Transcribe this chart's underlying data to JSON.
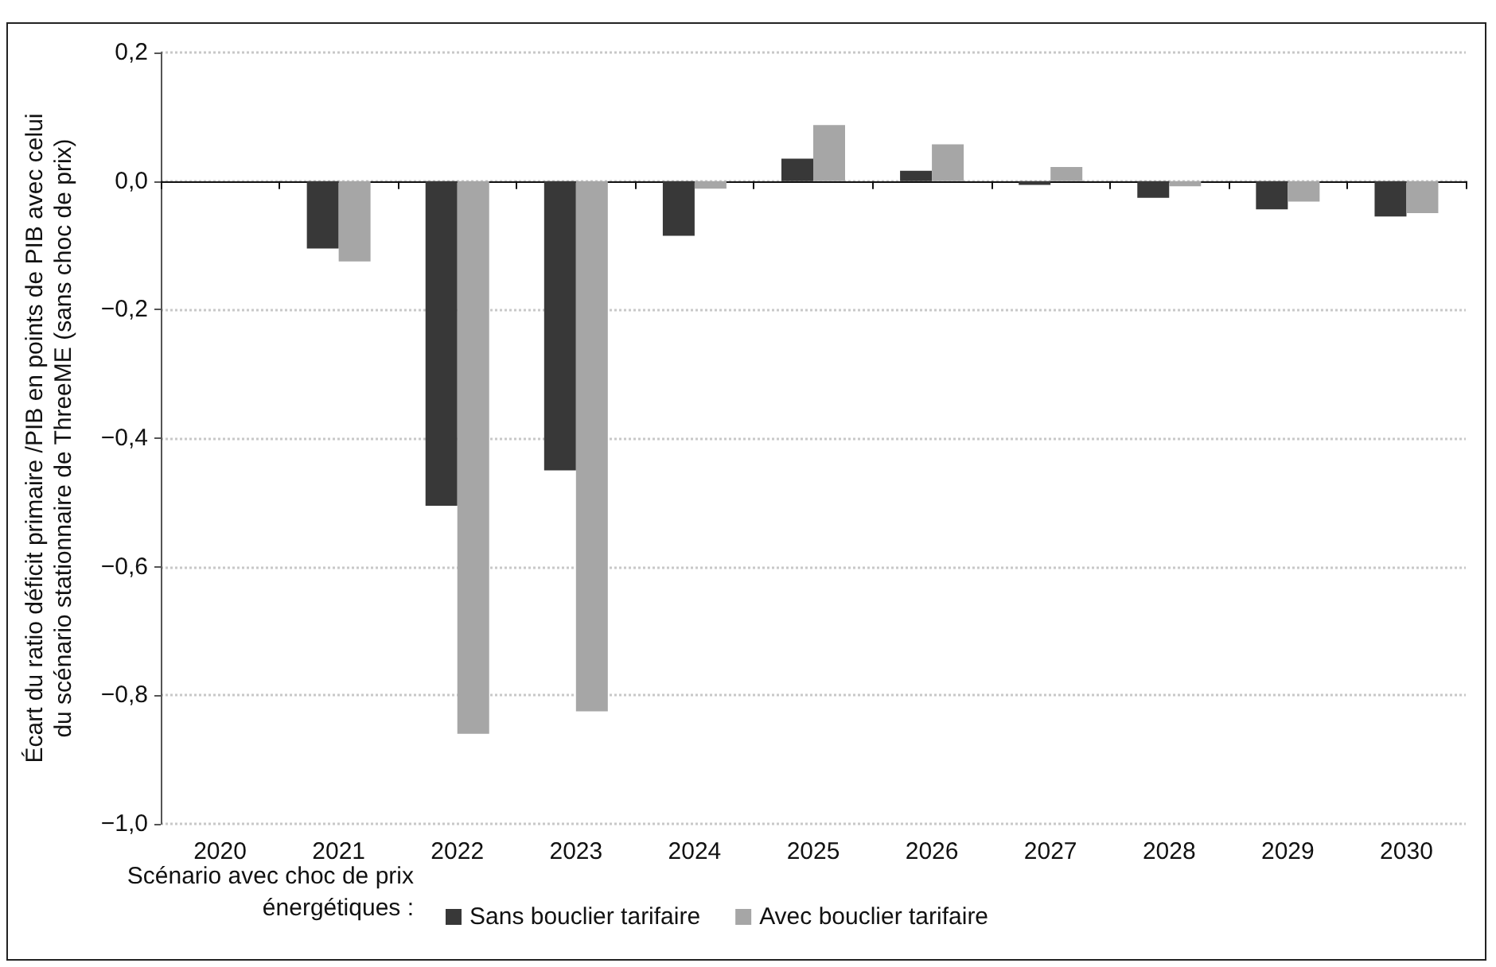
{
  "chart_data": {
    "type": "bar",
    "ylabel": "Écart du ratio déficit primaire /PIB en points de PIB avec celui\ndu scénario stationnaire de ThreeME (sans choc de prix)",
    "legend_title": "Scénario avec choc de prix\nénergétiques :",
    "categories": [
      "2020",
      "2021",
      "2022",
      "2023",
      "2024",
      "2025",
      "2026",
      "2027",
      "2028",
      "2029",
      "2030"
    ],
    "series": [
      {
        "name": "Sans bouclier tarifaire",
        "color": "#383838",
        "values": [
          0,
          -0.105,
          -0.505,
          -0.45,
          -0.085,
          0.035,
          0.016,
          -0.006,
          -0.026,
          -0.044,
          -0.055
        ]
      },
      {
        "name": "Avec bouclier tarifaire",
        "color": "#a6a6a6",
        "values": [
          0,
          -0.125,
          -0.86,
          -0.825,
          -0.012,
          0.087,
          0.057,
          0.022,
          -0.008,
          -0.032,
          -0.05
        ]
      }
    ],
    "ylim": [
      -1,
      0.2
    ],
    "yticks": [
      {
        "value": -1,
        "label": "−1,0"
      },
      {
        "value": -0.8,
        "label": "−0,8"
      },
      {
        "value": -0.6,
        "label": "−0,6"
      },
      {
        "value": -0.4,
        "label": "−0,4"
      },
      {
        "value": -0.2,
        "label": "−0,2"
      },
      {
        "value": 0,
        "label": "0,0"
      },
      {
        "value": 0.2,
        "label": "0,2"
      }
    ],
    "grid": "y",
    "legend": "bottom"
  }
}
